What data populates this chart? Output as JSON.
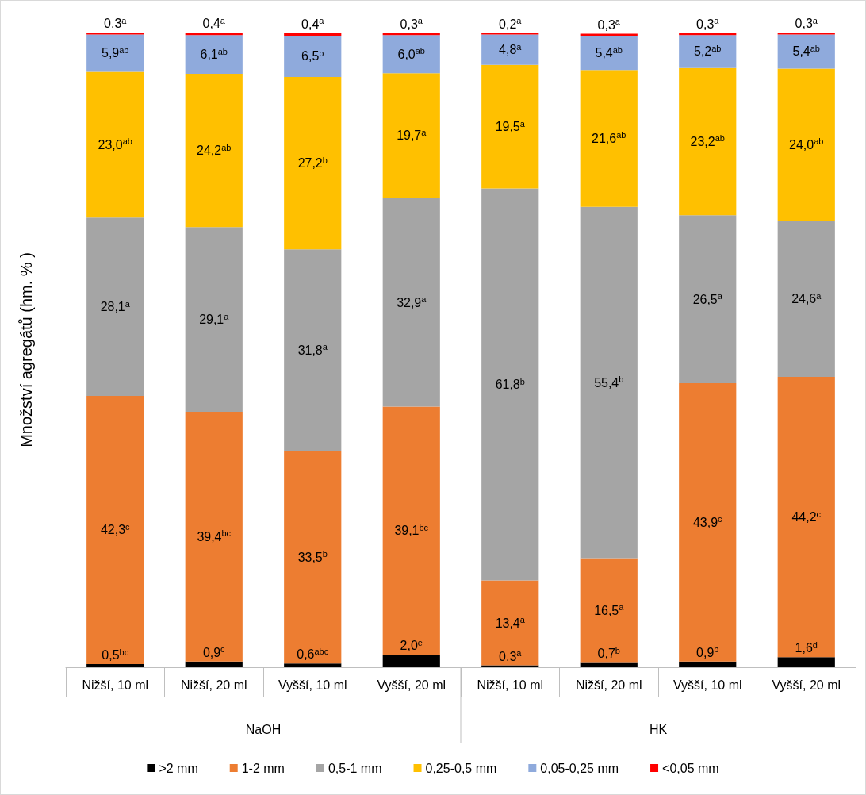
{
  "chart_data": {
    "type": "bar",
    "stacked": true,
    "ylabel": "Množství agregátů (hm. % )",
    "legend": "bottom",
    "grid": false,
    "categories": [
      "Nižší, 10 ml",
      "Nižší, 20 ml",
      "Vyšší, 10 ml",
      "Vyšší, 20 ml",
      "Nižší, 10 ml",
      "Nižší, 20 ml",
      "Vyšší, 10 ml",
      "Vyšší, 20 ml"
    ],
    "annotations": [
      "NaOH",
      "HK"
    ],
    "series": [
      {
        "name": ">2 mm",
        "color": "#000000",
        "values": [
          0.5,
          0.9,
          0.6,
          2.0,
          0.3,
          0.7,
          0.9,
          1.6
        ],
        "value_labels": [
          "0,5$^{bc}$",
          "0,9$^{c}$",
          "0,6$^{abc}$",
          "2,0$^{e}$",
          "0,3$^{a}$",
          "0,7$^{b}$",
          "0,9$^{b}$",
          "1,6$^{d}$"
        ]
      },
      {
        "name": "1-2 mm",
        "color": "#ed7d31",
        "values": [
          42.3,
          39.4,
          33.5,
          39.1,
          13.4,
          16.5,
          43.9,
          44.2
        ],
        "value_labels": [
          "42,3$^{c}$",
          "39,4$^{bc}$",
          "33,5$^{b}$",
          "39,1$^{bc}$",
          "13,4$^{a}$",
          "16,5$^{a}$",
          "43,9$^{c}$",
          "44,2$^{c}$"
        ]
      },
      {
        "name": "0,5-1 mm",
        "color": "#a5a5a5",
        "values": [
          28.1,
          29.1,
          31.8,
          32.9,
          61.8,
          55.4,
          26.5,
          24.6
        ],
        "value_labels": [
          "28,1$^{a}$",
          "29,1$^{a}$",
          "31,8$^{a}$",
          "32,9$^{a}$",
          "61,8$^{b}$",
          "55,4$^{b}$",
          "26,5$^{a}$",
          "24,6$^{a}$"
        ]
      },
      {
        "name": "0,25-0,5 mm",
        "color": "#ffc000",
        "values": [
          23.0,
          24.2,
          27.2,
          19.7,
          19.5,
          21.6,
          23.2,
          24.0
        ],
        "value_labels": [
          "23,0$^{ab}$",
          "24,2$^{ab}$",
          "27,2$^{b}$",
          "19,7$^{a}$",
          "19,5$^{a}$",
          "21,6$^{ab}$",
          "23,2$^{ab}$",
          "24,0$^{ab}$"
        ]
      },
      {
        "name": "0,05-0,25 mm",
        "color": "#8faadc",
        "values": [
          5.9,
          6.1,
          6.5,
          6.0,
          4.8,
          5.4,
          5.2,
          5.4
        ],
        "value_labels": [
          "5,9$^{ab}$",
          "6,1$^{ab}$",
          "6,5$^{b}$",
          "6,0$^{ab}$",
          "4,8$^{a}$",
          "5,4$^{ab}$",
          "5,2$^{ab}$",
          "5,4$^{ab}$"
        ]
      },
      {
        "name": "<0,05 mm",
        "color": "#ff0000",
        "values": [
          0.3,
          0.4,
          0.4,
          0.3,
          0.2,
          0.3,
          0.3,
          0.3
        ],
        "value_labels": [
          "0,3$^{a}$",
          "0,4$^{a}$",
          "0,4$^{a}$",
          "0,3$^{a}$",
          "0,2$^{a}$",
          "0,3$^{a}$",
          "0,3$^{a}$",
          "0,3$^{a}$"
        ]
      }
    ]
  }
}
